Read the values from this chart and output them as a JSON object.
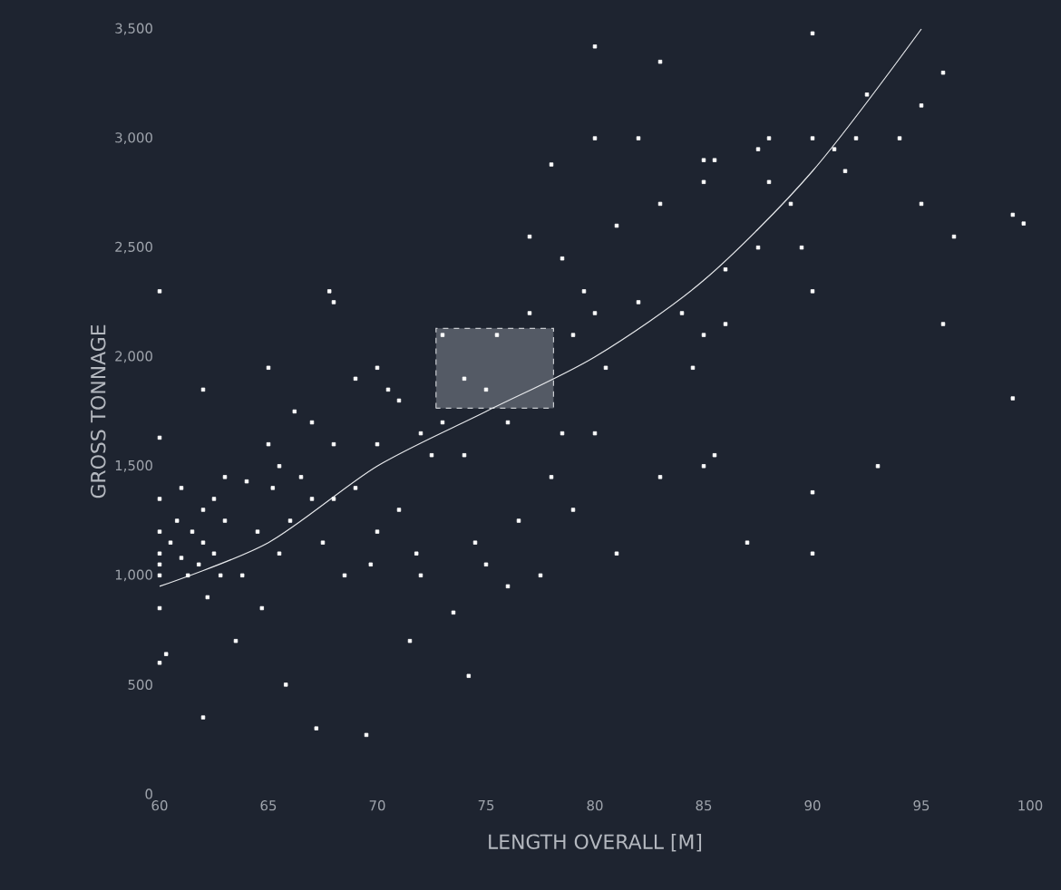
{
  "chart_data": {
    "type": "scatter",
    "xlabel": "LENGTH OVERALL [M]",
    "ylabel": "GROSS TONNAGE",
    "xlim": [
      60,
      100
    ],
    "ylim": [
      0,
      3500
    ],
    "xticks": [
      60,
      65,
      70,
      75,
      80,
      85,
      90,
      95,
      100
    ],
    "yticks": [
      0,
      500,
      {
        "value": 1000,
        "label": "1,000"
      },
      {
        "value": 1500,
        "label": "1,500"
      },
      {
        "value": 2000,
        "label": "2,000"
      },
      {
        "value": 2500,
        "label": "2,500"
      },
      {
        "value": 3000,
        "label": "3,000"
      },
      {
        "value": 3500,
        "label": "3,500"
      }
    ],
    "marker": "square",
    "series": [
      {
        "color": "#ffffff",
        "x": [
          60,
          60,
          60,
          60,
          60,
          60,
          60,
          60,
          60,
          60.3,
          60.5,
          60.8,
          61,
          61,
          61.3,
          61.5,
          61.8,
          62,
          62,
          62,
          62.2,
          62.5,
          62.5,
          62.8,
          62,
          63,
          63,
          63.5,
          63.8,
          64,
          64.5,
          64.7,
          65,
          65,
          65.2,
          65.5,
          65.5,
          65.8,
          66,
          66.2,
          66.5,
          67,
          67,
          67.2,
          67.5,
          67.8,
          68,
          68,
          68,
          68.5,
          69,
          69,
          69.5,
          69.7,
          70,
          70,
          70,
          70.5,
          71,
          71,
          71.5,
          71.8,
          72,
          72,
          72.5,
          73,
          73,
          73.5,
          74,
          74,
          74.2,
          74.5,
          75,
          75,
          75.5,
          76,
          76,
          76.5,
          77,
          77,
          77.5,
          78,
          78,
          78.5,
          78.5,
          79,
          79,
          79.5,
          80,
          80,
          80,
          80,
          80.5,
          81,
          81,
          82,
          82,
          83,
          83,
          83,
          84,
          84.5,
          85,
          85,
          85,
          85,
          85.5,
          85.5,
          86,
          86,
          87,
          87.5,
          87.5,
          88,
          88,
          89,
          89.5,
          90,
          90,
          90,
          90,
          90,
          91,
          91.5,
          92,
          92.5,
          93,
          94,
          95,
          95,
          96,
          96,
          96.5,
          99.2,
          99.2,
          99.7
        ],
        "values": [
          2300,
          1630,
          1350,
          1200,
          1100,
          1050,
          1000,
          850,
          600,
          640,
          1150,
          1250,
          1080,
          1400,
          1000,
          1200,
          1050,
          1300,
          1150,
          1850,
          900,
          1350,
          1100,
          1000,
          350,
          1250,
          1450,
          700,
          1000,
          1430,
          1200,
          850,
          1600,
          1950,
          1400,
          1500,
          1100,
          500,
          1250,
          1750,
          1450,
          1350,
          1700,
          300,
          1150,
          2300,
          2250,
          1600,
          1350,
          1000,
          1400,
          1900,
          270,
          1050,
          1950,
          1600,
          1200,
          1850,
          1800,
          1300,
          700,
          1100,
          1650,
          1000,
          1550,
          2100,
          1700,
          830,
          1900,
          1550,
          540,
          1150,
          1050,
          1850,
          2100,
          1700,
          950,
          1250,
          2550,
          2200,
          1000,
          2880,
          1450,
          2450,
          1650,
          1300,
          2100,
          2300,
          3420,
          3000,
          2200,
          1650,
          1950,
          2600,
          1100,
          2250,
          3000,
          3350,
          2700,
          1450,
          2200,
          1950,
          2900,
          2800,
          2100,
          1500,
          2900,
          1550,
          2400,
          2150,
          1150,
          2950,
          2500,
          3000,
          2800,
          2700,
          2500,
          3480,
          3000,
          2300,
          1380,
          1100,
          2950,
          2850,
          3000,
          3200,
          1500,
          3000,
          3150,
          2700,
          3300,
          2150,
          2550,
          1810,
          2650,
          2610
        ]
      },
      {
        "type": "line",
        "marker": "none",
        "color": "#e6e8eb",
        "x": [
          60,
          65,
          70,
          75,
          80,
          85,
          90,
          95
        ],
        "values": [
          950,
          1150,
          1500,
          1750,
          2000,
          2350,
          2850,
          3500
        ]
      }
    ]
  }
}
